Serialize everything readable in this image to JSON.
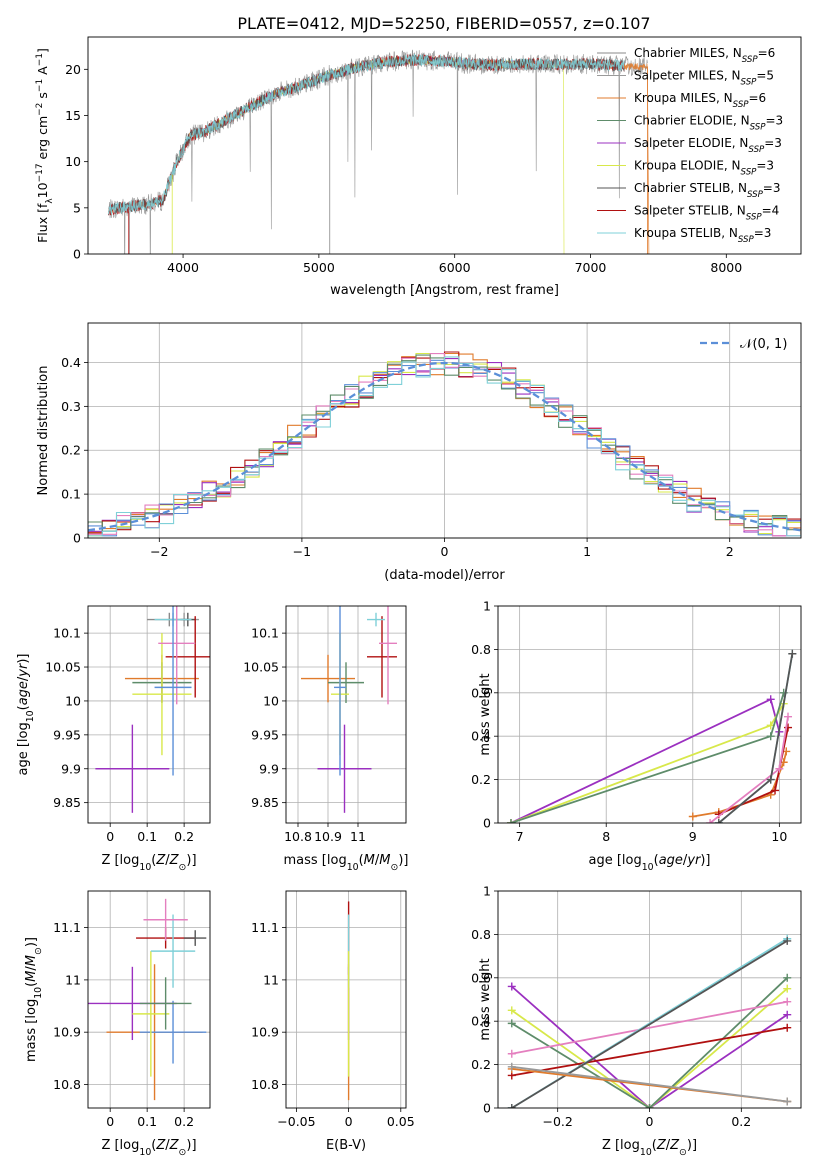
{
  "figure_title": "PLATE=0412, MJD=52250, FIBERID=0557, z=0.107",
  "colors": {
    "Chabrier MILES": "#8a8a8a",
    "Salpeter MILES": "#9a9a9a",
    "Kroupa MILES": "#e07b2c",
    "Chabrier ELODIE": "#5e8c6a",
    "Salpeter ELODIE": "#9b30c0",
    "Kroupa ELODIE": "#d8e84a",
    "Chabrier STELIB": "#555555",
    "Salpeter STELIB": "#b01010",
    "Kroupa STELIB": "#7fd0d8",
    "pink": "#e47fbf",
    "blue": "#5b8fd8",
    "grid": "#b0b0b0"
  },
  "chart_data": [
    {
      "id": "spectrum",
      "type": "line",
      "title": "PLATE=0412, MJD=52250, FIBERID=0557, z=0.107",
      "xlabel": "wavelength [Angstrom, rest frame]",
      "ylabel": "Flux [f_λ 10^-17 erg cm^-2 s^-1 A^-1]",
      "xlim": [
        3300,
        8550
      ],
      "ylim": [
        0,
        23.5
      ],
      "xticks": [
        4000,
        5000,
        6000,
        7000,
        8000
      ],
      "yticks": [
        0,
        5,
        10,
        15,
        20
      ],
      "grid": false,
      "legend_position": "right",
      "continuum": {
        "x": [
          3450,
          3550,
          3650,
          3750,
          3850,
          3950,
          4050,
          4150,
          4250,
          4350,
          4500,
          4700,
          4900,
          5100,
          5300,
          5500,
          5700,
          5900,
          6100,
          6300,
          6500,
          6700,
          6900,
          7100,
          7300
        ],
        "y": [
          4.8,
          5.0,
          5.2,
          5.4,
          5.8,
          9.8,
          12.8,
          13.2,
          14.0,
          14.8,
          16.0,
          17.5,
          18.4,
          19.5,
          20.3,
          20.8,
          21.0,
          20.9,
          20.6,
          20.5,
          20.6,
          20.5,
          20.6,
          20.5,
          20.3
        ]
      },
      "legend": [
        {
          "name": "Chabrier MILES",
          "nssp": "6"
        },
        {
          "name": "Salpeter MILES",
          "nssp": "5"
        },
        {
          "name": "Kroupa MILES",
          "nssp": "6"
        },
        {
          "name": "Chabrier ELODIE",
          "nssp": "3"
        },
        {
          "name": "Salpeter ELODIE",
          "nssp": "3"
        },
        {
          "name": "Kroupa ELODIE",
          "nssp": "3"
        },
        {
          "name": "Chabrier STELIB",
          "nssp": "3"
        },
        {
          "name": "Salpeter STELIB",
          "nssp": "4"
        },
        {
          "name": "Kroupa STELIB",
          "nssp": "3"
        }
      ]
    },
    {
      "id": "residuals",
      "type": "area",
      "xlabel": "(data-model)/error",
      "ylabel": "Normed distribution",
      "xlim": [
        -2.5,
        2.5
      ],
      "ylim": [
        0,
        0.49
      ],
      "xticks": [
        -2,
        -1,
        0,
        1,
        2
      ],
      "yticks": [
        0.0,
        0.1,
        0.2,
        0.3,
        0.4
      ],
      "grid": true,
      "reference_label": "𝒩(0, 1)",
      "legend_position": "top-right"
    },
    {
      "id": "age_vs_Z",
      "type": "scatter",
      "xlabel": "Z [log10(Z/Z⊙)]",
      "ylabel": "age  [log10(age/yr)]",
      "xlim": [
        -0.06,
        0.27
      ],
      "ylim": [
        9.82,
        10.14
      ],
      "xticks": [
        0.0,
        0.1,
        0.2
      ],
      "yticks": [
        9.85,
        9.9,
        9.95,
        10.0,
        10.05,
        10.1
      ],
      "grid": true,
      "points": [
        {
          "model": "Chabrier MILES",
          "x": 0.16,
          "y": 10.12,
          "xerr": 0.06,
          "yerr": 0.01
        },
        {
          "model": "Salpeter MILES",
          "x": 0.2,
          "y": 10.12,
          "xerr": 0.04,
          "yerr": 0.01
        },
        {
          "model": "Kroupa MILES",
          "x": 0.14,
          "y": 10.033,
          "xerr": 0.1,
          "yerr": 0.035
        },
        {
          "model": "Chabrier ELODIE",
          "x": 0.14,
          "y": 10.027,
          "xerr": 0.08,
          "yerr": 0.03
        },
        {
          "model": "Salpeter ELODIE",
          "x": 0.06,
          "y": 9.9,
          "xerr": 0.1,
          "yerr": 0.065
        },
        {
          "model": "Kroupa ELODIE",
          "x": 0.14,
          "y": 10.01,
          "xerr": 0.08,
          "yerr": 0.09
        },
        {
          "model": "Chabrier STELIB",
          "x": 0.21,
          "y": 10.12,
          "xerr": 0.02,
          "yerr": 0.01
        },
        {
          "model": "Salpeter STELIB",
          "x": 0.23,
          "y": 10.065,
          "xerr": 0.08,
          "yerr": 0.06
        },
        {
          "model": "Kroupa STELIB",
          "x": 0.17,
          "y": 10.12,
          "xerr": 0.05,
          "yerr": 0.01
        },
        {
          "model": "pink",
          "x": 0.18,
          "y": 10.085,
          "xerr": 0.05,
          "yerr": 0.09
        },
        {
          "model": "blue",
          "x": 0.17,
          "y": 10.02,
          "xerr": 0.05,
          "yerr": 0.13
        }
      ]
    },
    {
      "id": "age_vs_mass",
      "type": "scatter",
      "xlabel": "mass [log10(M/M⊙)]",
      "ylabel": "",
      "xlim": [
        10.76,
        11.16
      ],
      "ylim": [
        9.82,
        10.14
      ],
      "xticks": [
        10.8,
        10.9,
        11.0
      ],
      "yticks": [
        9.85,
        9.9,
        9.95,
        10.0,
        10.05,
        10.1
      ],
      "grid": true,
      "points": [
        {
          "model": "Kroupa MILES",
          "x": 10.9,
          "y": 10.033,
          "xerr": 0.09,
          "yerr": 0.035
        },
        {
          "model": "Chabrier ELODIE",
          "x": 10.96,
          "y": 10.027,
          "xerr": 0.06,
          "yerr": 0.03
        },
        {
          "model": "Salpeter ELODIE",
          "x": 10.955,
          "y": 9.9,
          "xerr": 0.09,
          "yerr": 0.065
        },
        {
          "model": "Kroupa ELODIE",
          "x": 10.94,
          "y": 10.01,
          "xerr": 0.03,
          "yerr": 0.09
        },
        {
          "model": "blue",
          "x": 10.94,
          "y": 10.02,
          "xerr": 0.02,
          "yerr": 0.13
        },
        {
          "model": "Salpeter STELIB",
          "x": 11.08,
          "y": 10.065,
          "xerr": 0.05,
          "yerr": 0.06
        },
        {
          "model": "Kroupa STELIB",
          "x": 11.06,
          "y": 10.12,
          "xerr": 0.03,
          "yerr": 0.01
        },
        {
          "model": "pink",
          "x": 11.1,
          "y": 10.085,
          "xerr": 0.03,
          "yerr": 0.09
        }
      ]
    },
    {
      "id": "massweight_vs_age",
      "type": "line",
      "xlabel": "age  [log10(age/yr)]",
      "ylabel": "mass weight",
      "xlim": [
        6.75,
        10.25
      ],
      "ylim": [
        0,
        1.0
      ],
      "xticks": [
        7,
        8,
        9,
        10
      ],
      "yticks": [
        0.0,
        0.2,
        0.4,
        0.6,
        0.8,
        1.0
      ],
      "grid": true,
      "series": [
        {
          "model": "Salpeter ELODIE",
          "x": [
            6.9,
            9.9,
            10.0
          ],
          "y": [
            0.0,
            0.57,
            0.42
          ]
        },
        {
          "model": "Kroupa ELODIE",
          "x": [
            6.9,
            9.9,
            10.05
          ],
          "y": [
            0.0,
            0.45,
            0.55
          ]
        },
        {
          "model": "Chabrier ELODIE",
          "x": [
            6.9,
            9.9,
            10.05
          ],
          "y": [
            0.0,
            0.4,
            0.6
          ]
        },
        {
          "model": "Kroupa MILES",
          "x": [
            9.0,
            9.3,
            9.9,
            10.05,
            10.08
          ],
          "y": [
            0.03,
            0.05,
            0.13,
            0.28,
            0.33
          ]
        },
        {
          "model": "Salpeter STELIB",
          "x": [
            9.3,
            9.95,
            10.1
          ],
          "y": [
            0.04,
            0.15,
            0.44
          ]
        },
        {
          "model": "Kroupa STELIB",
          "x": [
            9.3,
            9.9,
            10.15
          ],
          "y": [
            0.0,
            0.2,
            0.78
          ]
        },
        {
          "model": "pink",
          "x": [
            9.2,
            10.0,
            10.1
          ],
          "y": [
            0.0,
            0.25,
            0.49
          ]
        },
        {
          "model": "Chabrier STELIB",
          "x": [
            9.3,
            9.9,
            10.15
          ],
          "y": [
            0.0,
            0.2,
            0.78
          ]
        }
      ]
    },
    {
      "id": "mass_vs_Z",
      "type": "scatter",
      "xlabel": "Z [log10(Z/Z⊙)]",
      "ylabel": "mass [log10(M/M⊙)]",
      "xlim": [
        -0.06,
        0.27
      ],
      "ylim": [
        10.755,
        11.17
      ],
      "xticks": [
        0.0,
        0.1,
        0.2
      ],
      "yticks": [
        10.8,
        10.9,
        11.0,
        11.1
      ],
      "grid": true,
      "points": [
        {
          "model": "Kroupa MILES",
          "x": 0.12,
          "y": 10.9,
          "xerr": 0.13,
          "yerr": 0.13
        },
        {
          "model": "blue",
          "x": 0.17,
          "y": 10.9,
          "xerr": 0.09,
          "yerr": 0.06
        },
        {
          "model": "Salpeter ELODIE",
          "x": 0.06,
          "y": 10.955,
          "xerr": 0.12,
          "yerr": 0.07
        },
        {
          "model": "Kroupa ELODIE",
          "x": 0.11,
          "y": 10.935,
          "xerr": 0.05,
          "yerr": 0.12
        },
        {
          "model": "Chabrier ELODIE",
          "x": 0.15,
          "y": 10.955,
          "xerr": 0.07,
          "yerr": 0.05
        },
        {
          "model": "Salpeter STELIB",
          "x": 0.15,
          "y": 11.08,
          "xerr": 0.08,
          "yerr": 0.02
        },
        {
          "model": "Chabrier STELIB",
          "x": 0.23,
          "y": 11.08,
          "xerr": 0.03,
          "yerr": 0.015
        },
        {
          "model": "Kroupa STELIB",
          "x": 0.17,
          "y": 11.055,
          "xerr": 0.06,
          "yerr": 0.07
        },
        {
          "model": "pink",
          "x": 0.15,
          "y": 11.115,
          "xerr": 0.06,
          "yerr": 0.04
        }
      ]
    },
    {
      "id": "mass_vs_EBV",
      "type": "scatter",
      "xlabel": "E(B-V)",
      "ylabel": "",
      "xlim": [
        -0.06,
        0.055
      ],
      "ylim": [
        10.755,
        11.17
      ],
      "xticks": [
        -0.05,
        0.0,
        0.05
      ],
      "yticks": [
        10.8,
        10.9,
        11.0,
        11.1
      ],
      "grid": true,
      "points": [
        {
          "model": "Kroupa MILES",
          "x": 0.0,
          "y": 10.9,
          "xerr": 0.0,
          "yerr": 0.13
        },
        {
          "model": "Salpeter STELIB",
          "x": 0.0,
          "y": 11.08,
          "xerr": 0.0,
          "yerr": 0.07
        },
        {
          "model": "Salpeter ELODIE",
          "x": 0.0,
          "y": 10.955,
          "xerr": 0.0,
          "yerr": 0.07
        },
        {
          "model": "Kroupa STELIB",
          "x": 0.0,
          "y": 11.055,
          "xerr": 0.0,
          "yerr": 0.07
        },
        {
          "model": "Kroupa ELODIE",
          "x": 0.0,
          "y": 10.935,
          "xerr": 0.0,
          "yerr": 0.12
        }
      ]
    },
    {
      "id": "massweight_vs_Z",
      "type": "line",
      "xlabel": "Z [log10(Z/Z⊙)]",
      "ylabel": "mass weight",
      "xlim": [
        -0.33,
        0.33
      ],
      "ylim": [
        0,
        1.0
      ],
      "xticks": [
        -0.2,
        0.0,
        0.2
      ],
      "yticks": [
        0.0,
        0.2,
        0.4,
        0.6,
        0.8,
        1.0
      ],
      "grid": true,
      "series": [
        {
          "model": "Salpeter ELODIE",
          "x": [
            -0.3,
            0.0,
            0.3
          ],
          "y": [
            0.56,
            0.0,
            0.43
          ]
        },
        {
          "model": "Kroupa ELODIE",
          "x": [
            -0.3,
            0.0,
            0.3
          ],
          "y": [
            0.45,
            0.0,
            0.55
          ]
        },
        {
          "model": "Chabrier ELODIE",
          "x": [
            -0.3,
            0.0,
            0.3
          ],
          "y": [
            0.39,
            0.0,
            0.6
          ]
        },
        {
          "model": "pink",
          "x": [
            -0.3,
            0.3
          ],
          "y": [
            0.25,
            0.49
          ]
        },
        {
          "model": "Salpeter STELIB",
          "x": [
            -0.3,
            0.3
          ],
          "y": [
            0.15,
            0.37
          ]
        },
        {
          "model": "Kroupa STELIB",
          "x": [
            -0.3,
            0.3
          ],
          "y": [
            0.0,
            0.78
          ]
        },
        {
          "model": "Chabrier STELIB",
          "x": [
            -0.3,
            0.3
          ],
          "y": [
            0.0,
            0.77
          ]
        },
        {
          "model": "Kroupa MILES",
          "x": [
            -0.3,
            0.3
          ],
          "y": [
            0.18,
            0.03
          ]
        },
        {
          "model": "Salpeter MILES",
          "x": [
            -0.3,
            0.3
          ],
          "y": [
            0.19,
            0.03
          ]
        }
      ]
    }
  ]
}
